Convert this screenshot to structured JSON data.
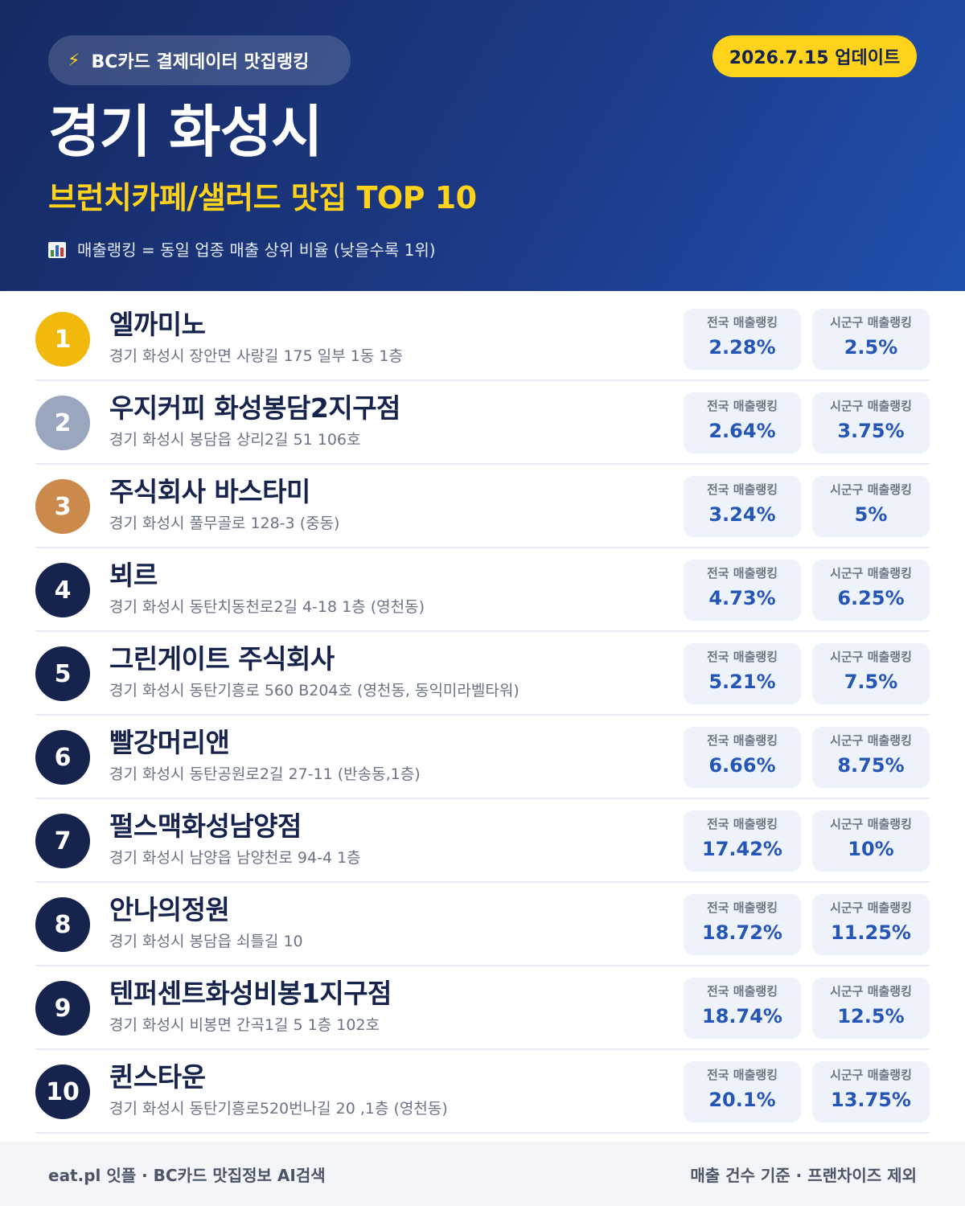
{
  "header": {
    "source_label": "BC카드 결제데이터 맛집랭킹",
    "source_icon": "lightning-icon",
    "update_label": "2026.7.15 업데이트",
    "city": "경기 화성시",
    "subtitle": "브런치카페/샐러드 맛집 TOP 10",
    "legend_icon": "bar-chart-icon",
    "legend_text": "매출랭킹 = 동일 업종 매출 상위 비율 (낮을수록 1위)"
  },
  "stat_labels": {
    "national": "전국 매출랭킹",
    "local": "시군구 매출랭킹"
  },
  "ranking": [
    {
      "rank": "1",
      "name": "엘까미노",
      "address": "경기 화성시 장안면 사랑길 175 일부 1동 1층",
      "national": "2.28%",
      "local": "2.5%"
    },
    {
      "rank": "2",
      "name": "우지커피 화성봉담2지구점",
      "address": "경기 화성시 봉담읍 상리2길 51 106호",
      "national": "2.64%",
      "local": "3.75%"
    },
    {
      "rank": "3",
      "name": "주식회사 바스타미",
      "address": "경기 화성시 풀무골로 128-3 (중동)",
      "national": "3.24%",
      "local": "5%"
    },
    {
      "rank": "4",
      "name": "뵈르",
      "address": "경기 화성시 동탄치동천로2길 4-18 1층 (영천동)",
      "national": "4.73%",
      "local": "6.25%"
    },
    {
      "rank": "5",
      "name": "그린게이트 주식회사",
      "address": "경기 화성시 동탄기흥로 560 B204호 (영천동, 동익미라벨타워)",
      "national": "5.21%",
      "local": "7.5%"
    },
    {
      "rank": "6",
      "name": "빨강머리앤",
      "address": "경기 화성시 동탄공원로2길 27-11 (반송동,1층)",
      "national": "6.66%",
      "local": "8.75%"
    },
    {
      "rank": "7",
      "name": "펄스맥화성남양점",
      "address": "경기 화성시 남양읍 남양천로 94-4 1층",
      "national": "17.42%",
      "local": "10%"
    },
    {
      "rank": "8",
      "name": "안나의정원",
      "address": "경기 화성시 봉담읍 쇠틀길 10",
      "national": "18.72%",
      "local": "11.25%"
    },
    {
      "rank": "9",
      "name": "텐퍼센트화성비봉1지구점",
      "address": "경기 화성시 비봉면 간곡1길 5 1층 102호",
      "national": "18.74%",
      "local": "12.5%"
    },
    {
      "rank": "10",
      "name": "퀸스타운",
      "address": "경기 화성시 동탄기흥로520번나길 20 ,1층 (영천동)",
      "national": "20.1%",
      "local": "13.75%"
    }
  ],
  "footer": {
    "left": "eat.pl 잇플 · BC카드 맛집정보 AI검색",
    "right": "매출 건수 기준 · 프랜차이즈 제외"
  },
  "colors": {
    "header_dark": "#162a63",
    "header_light": "#2150ae",
    "accent_yellow": "#ffd21c",
    "rank_gold": "#f0b90b",
    "rank_silver": "#9aa6bd",
    "rank_bronze": "#cb8a4b",
    "rank_default": "#15234d",
    "stat_value": "#2556b6"
  }
}
